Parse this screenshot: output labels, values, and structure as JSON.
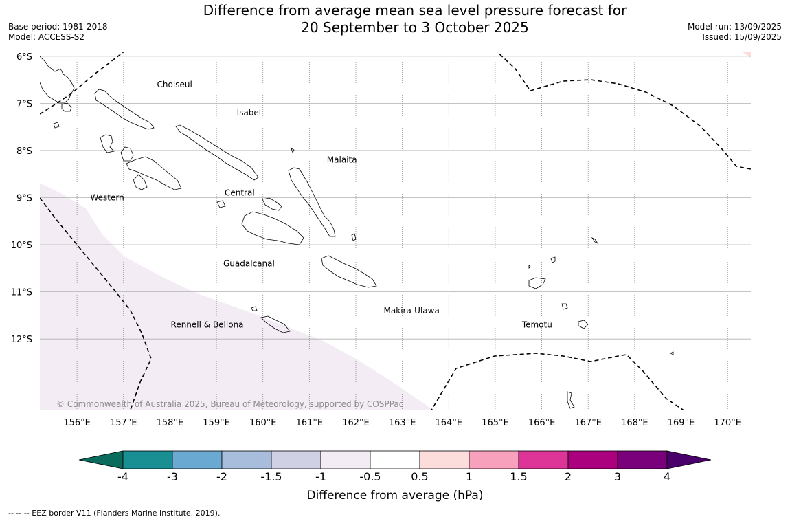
{
  "title_line1": "Difference from average mean sea level pressure forecast for",
  "title_line2": "20 September to 3 October 2025",
  "base_period": "Base period: 1981-2018",
  "model": "Model: ACCESS-S2",
  "model_run": "Model run: 13/09/2025",
  "issued": "Issued: 15/09/2025",
  "copyright": "© Commonwealth of Australia 2025, Bureau of Meteorology, supported by COSPPac",
  "footnote": "--  --  -- EEZ border V11 (Flanders Marine Institute, 2019).",
  "map": {
    "lon_range": [
      155.2,
      170.5
    ],
    "lat_range": [
      -13.5,
      -5.9
    ],
    "lon_ticks": [
      "156°E",
      "157°E",
      "158°E",
      "159°E",
      "160°E",
      "161°E",
      "162°E",
      "163°E",
      "164°E",
      "165°E",
      "166°E",
      "167°E",
      "168°E",
      "169°E",
      "170°E"
    ],
    "lat_ticks": [
      "6°S",
      "7°S",
      "8°S",
      "9°S",
      "10°S",
      "11°S",
      "12°S"
    ],
    "regions": [
      {
        "name": "Choiseul",
        "lon": 158.1,
        "lat": -6.6
      },
      {
        "name": "Isabel",
        "lon": 159.7,
        "lat": -7.2
      },
      {
        "name": "Malaita",
        "lon": 161.7,
        "lat": -8.2
      },
      {
        "name": "Central",
        "lon": 159.5,
        "lat": -8.9
      },
      {
        "name": "Western",
        "lon": 156.65,
        "lat": -9.0
      },
      {
        "name": "Guadalcanal",
        "lon": 159.7,
        "lat": -10.4
      },
      {
        "name": "Makira-Ulawa",
        "lon": 163.2,
        "lat": -11.4
      },
      {
        "name": "Rennell & Bellona",
        "lon": 158.8,
        "lat": -11.7
      },
      {
        "name": "Temotu",
        "lon": 165.9,
        "lat": -11.7
      }
    ],
    "colors": {
      "negative_fill": "#f3ecf4",
      "positive_fill": "#fddcdc",
      "grid": "#888888",
      "coast": "#000000"
    }
  },
  "colorbar": {
    "title": "Difference from average (hPa)",
    "labels": [
      "-4",
      "-3",
      "-2",
      "-1.5",
      "-1",
      "-0.5",
      "0.5",
      "1",
      "1.5",
      "2",
      "3",
      "4"
    ],
    "colors": [
      "#1a8f93",
      "#6aa9d2",
      "#a8bcdb",
      "#cfd0e4",
      "#f3ecf4",
      "#ffffff",
      "#fddcdc",
      "#f8a1bd",
      "#dd3597",
      "#ac017e",
      "#79007a"
    ],
    "under_color": "#0b6b5c",
    "over_color": "#49006a"
  }
}
